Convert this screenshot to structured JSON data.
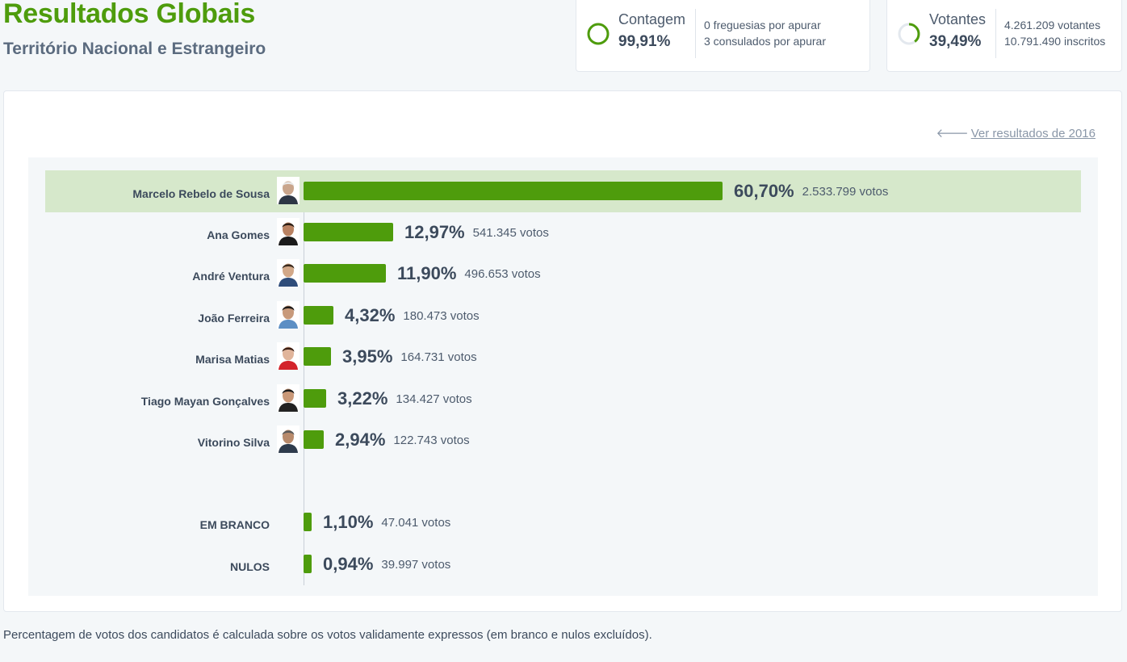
{
  "header": {
    "title": "Resultados Globais",
    "subtitle": "Território Nacional e Estrangeiro"
  },
  "stats": {
    "count": {
      "label": "Contagem",
      "value": "99,91%",
      "progress": 0.9991,
      "detail_1": "0 freguesias por apurar",
      "detail_2": "3 consulados por apurar"
    },
    "voters": {
      "label": "Votantes",
      "value": "39,49%",
      "progress": 0.3949,
      "detail_1": "4.261.209 votantes",
      "detail_2": "10.791.490 inscritos"
    }
  },
  "panel": {
    "prev_link": "Ver resultados de 2016"
  },
  "chart_data": {
    "type": "bar",
    "orientation": "horizontal",
    "categories": [
      "Marcelo Rebelo de Sousa",
      "Ana Gomes",
      "André Ventura",
      "João Ferreira",
      "Marisa Matias",
      "Tiago Mayan Gonçalves",
      "Vitorino Silva",
      "EM BRANCO",
      "NULOS"
    ],
    "values": [
      60.7,
      12.97,
      11.9,
      4.32,
      3.95,
      3.22,
      2.94,
      1.1,
      0.94
    ],
    "rows": [
      {
        "name": "Marcelo Rebelo de Sousa",
        "pct": "60,70%",
        "votes": "2.533.799 votos",
        "value": 60.7,
        "highlight": true,
        "photo": true
      },
      {
        "name": "Ana Gomes",
        "pct": "12,97%",
        "votes": "541.345 votos",
        "value": 12.97,
        "photo": true
      },
      {
        "name": "André Ventura",
        "pct": "11,90%",
        "votes": "496.653 votos",
        "value": 11.9,
        "photo": true
      },
      {
        "name": "João Ferreira",
        "pct": "4,32%",
        "votes": "180.473 votos",
        "value": 4.32,
        "photo": true
      },
      {
        "name": "Marisa Matias",
        "pct": "3,95%",
        "votes": "164.731 votos",
        "value": 3.95,
        "photo": true
      },
      {
        "name": "Tiago Mayan Gonçalves",
        "pct": "3,22%",
        "votes": "134.427 votos",
        "value": 3.22,
        "photo": true
      },
      {
        "name": "Vitorino Silva",
        "pct": "2,94%",
        "votes": "122.743 votos",
        "value": 2.94,
        "photo": true
      },
      {
        "name": "EM BRANCO",
        "pct": "1,10%",
        "votes": "47.041 votos",
        "value": 1.1,
        "photo": false
      },
      {
        "name": "NULOS",
        "pct": "0,94%",
        "votes": "39.997 votos",
        "value": 0.94,
        "photo": false
      }
    ],
    "bar_color": "#4e9c0c",
    "highlight_color": "#d6e8cb"
  },
  "footnote": "Percentagem de votos dos candidatos é calculada sobre os votos validamente expressos (em branco e nulos excluídos).",
  "colors": {
    "brand_green": "#4e9c0c",
    "text": "#3c4a5c",
    "muted": "#8a97a8"
  }
}
